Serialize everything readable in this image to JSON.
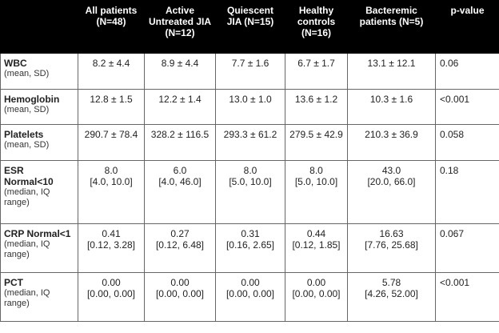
{
  "columns": [
    {
      "id": "variable",
      "label": ""
    },
    {
      "id": "all",
      "label": "All patients (N=48)"
    },
    {
      "id": "active",
      "label": "Active Untreated JIA (N=12)"
    },
    {
      "id": "quiescent",
      "label": "Quiescent JIA (N=15)"
    },
    {
      "id": "healthy",
      "label": "Healthy controls (N=16)"
    },
    {
      "id": "bacteremic",
      "label": "Bacteremic patients (N=5)"
    },
    {
      "id": "pvalue",
      "label": "p-value"
    }
  ],
  "rows": [
    {
      "name": "WBC",
      "sub": "(mean, SD)",
      "values": [
        [
          "8.2 ± 4.4"
        ],
        [
          "8.9 ± 4.4"
        ],
        [
          "7.7 ± 1.6"
        ],
        [
          "6.7 ± 1.7"
        ],
        [
          "13.1 ± 12.1"
        ]
      ],
      "p": "0.06"
    },
    {
      "name": "Hemoglobin",
      "sub": "(mean, SD)",
      "values": [
        [
          "12.8 ± 1.5"
        ],
        [
          "12.2 ± 1.4"
        ],
        [
          "13.0 ± 1.0"
        ],
        [
          "13.6 ± 1.2"
        ],
        [
          "10.3 ± 1.6"
        ]
      ],
      "p": "<0.001"
    },
    {
      "name": "Platelets",
      "sub": "(mean, SD)",
      "values": [
        [
          "290.7 ± 78.4"
        ],
        [
          "328.2 ± 116.5"
        ],
        [
          "293.3 ± 61.2"
        ],
        [
          "279.5 ± 42.9"
        ],
        [
          "210.3 ± 36.9"
        ]
      ],
      "p": "0.058"
    },
    {
      "name": "ESR Normal<10",
      "sub": "(median, IQ range)",
      "values": [
        [
          "8.0",
          "[4.0, 10.0]"
        ],
        [
          "6.0",
          "[4.0, 46.0]"
        ],
        [
          "8.0",
          "[5.0, 10.0]"
        ],
        [
          "8.0",
          "[5.0, 10.0]"
        ],
        [
          "43.0",
          "[20.0, 66.0]"
        ]
      ],
      "p": "0.18"
    },
    {
      "name": "CRP Normal<1",
      "sub": "(median, IQ range)",
      "values": [
        [
          "0.41",
          "[0.12, 3.28]"
        ],
        [
          "0.27",
          "[0.12, 6.48]"
        ],
        [
          "0.31",
          "[0.16, 2.65]"
        ],
        [
          "0.44",
          "[0.12, 1.85]"
        ],
        [
          "16.63",
          "[7.76, 25.68]"
        ]
      ],
      "p": "0.067"
    },
    {
      "name": "PCT",
      "sub": "(median, IQ range)",
      "values": [
        [
          "0.00",
          "[0.00, 0.00]"
        ],
        [
          "0.00",
          "[0.00, 0.00]"
        ],
        [
          "0.00",
          "[0.00, 0.00]"
        ],
        [
          "0.00",
          "[0.00, 0.00]"
        ],
        [
          "5.78",
          "[4.26, 52.00]"
        ]
      ],
      "p": "<0.001"
    }
  ]
}
